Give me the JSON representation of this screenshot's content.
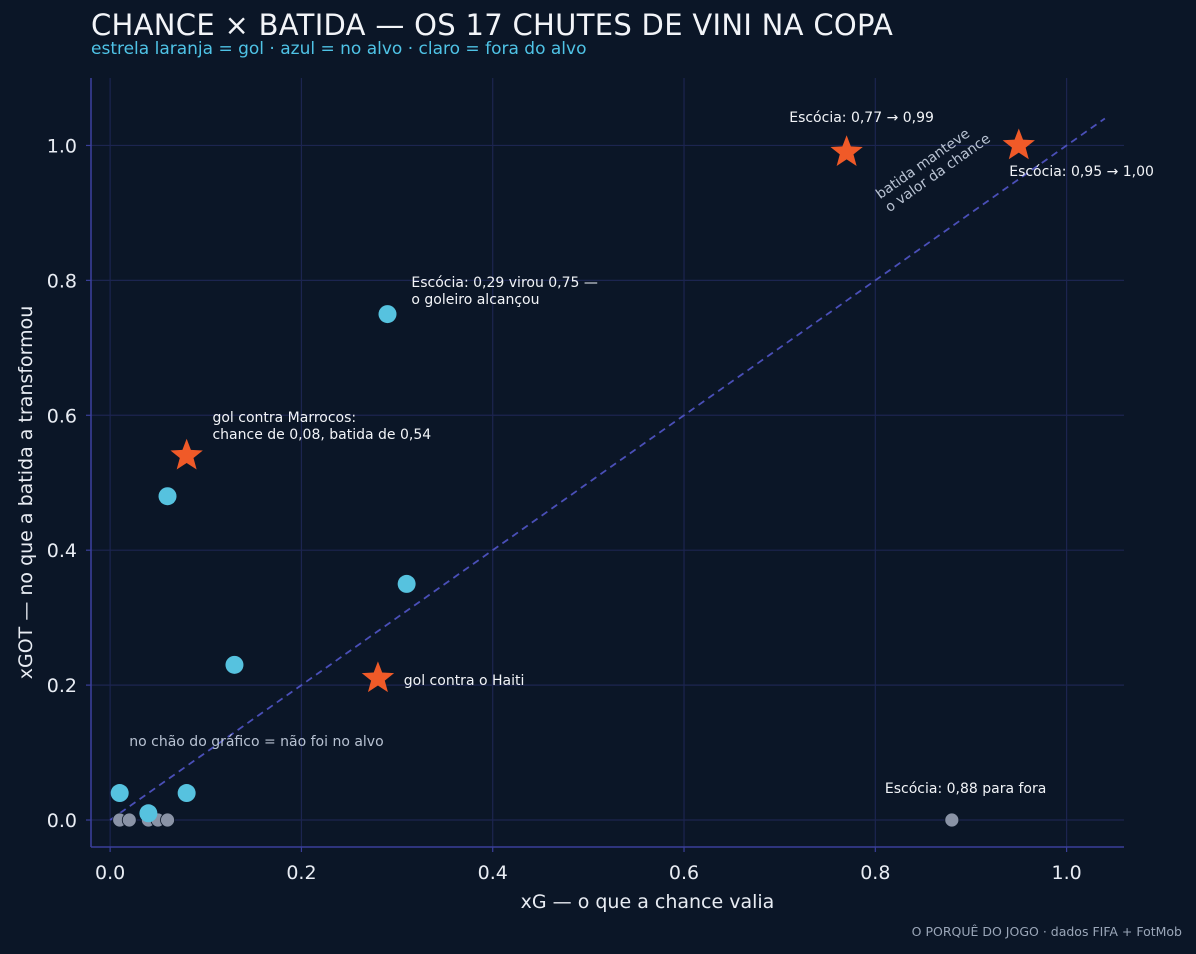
{
  "header": {
    "title": "CHANCE × BATIDA — OS 17 CHUTES DE VINI NA COPA",
    "subtitle": "estrela laranja = gol · azul = no alvo · claro = fora do alvo"
  },
  "footer": {
    "credit": "O PORQUÊ DO JOGO · dados FIFA + FotMob"
  },
  "colors": {
    "background": "#0b1627",
    "grid": "#1c2550",
    "axis": "#3a3f9a",
    "diagonal": "#4a4fb8",
    "goal": "#f05a28",
    "on_target": "#56c2df",
    "off_target": "#8a93a6"
  },
  "chart_data": {
    "type": "scatter",
    "title": "CHANCE × BATIDA — OS 17 CHUTES DE VINI NA COPA",
    "xlabel": "xG — o que a chance valia",
    "ylabel": "xGOT — no que a batida a transformou",
    "xlim": [
      -0.02,
      1.06
    ],
    "ylim": [
      -0.04,
      1.1
    ],
    "xticks": [
      0.0,
      0.2,
      0.4,
      0.6,
      0.8,
      1.0
    ],
    "xtick_labels": [
      "0.0",
      "0.2",
      "0.4",
      "0.6",
      "0.8",
      "1.0"
    ],
    "yticks": [
      0.0,
      0.2,
      0.4,
      0.6,
      0.8,
      1.0
    ],
    "ytick_labels": [
      "0.0",
      "0.2",
      "0.4",
      "0.6",
      "0.8",
      "1.0"
    ],
    "grid": true,
    "reference_line": {
      "label": "batida manteve o valor da chance",
      "x": [
        0.0,
        1.04
      ],
      "y": [
        0.0,
        1.04
      ]
    },
    "series": [
      {
        "marker": "star",
        "color": "#f05a28",
        "points": [
          {
            "x": 0.77,
            "y": 0.99
          },
          {
            "x": 0.95,
            "y": 1.0
          },
          {
            "x": 0.08,
            "y": 0.54
          },
          {
            "x": 0.28,
            "y": 0.21
          }
        ]
      },
      {
        "marker": "circle",
        "color": "#56c2df",
        "points": [
          {
            "x": 0.29,
            "y": 0.75
          },
          {
            "x": 0.06,
            "y": 0.48
          },
          {
            "x": 0.31,
            "y": 0.35
          },
          {
            "x": 0.13,
            "y": 0.23
          },
          {
            "x": 0.01,
            "y": 0.04
          },
          {
            "x": 0.08,
            "y": 0.04
          },
          {
            "x": 0.04,
            "y": 0.01
          }
        ]
      },
      {
        "marker": "small-circle",
        "color": "#8a93a6",
        "points": [
          {
            "x": 0.01,
            "y": 0.0
          },
          {
            "x": 0.02,
            "y": 0.0
          },
          {
            "x": 0.04,
            "y": 0.0
          },
          {
            "x": 0.05,
            "y": 0.0
          },
          {
            "x": 0.06,
            "y": 0.0
          },
          {
            "x": 0.88,
            "y": 0.0
          }
        ]
      }
    ],
    "annotations": [
      {
        "lines": [
          "Escócia: 0,77 → 0,99"
        ],
        "x": 0.71,
        "y": 1.035,
        "anchor": "start",
        "style": "ann"
      },
      {
        "lines": [
          "Escócia: 0,95 → 1,00"
        ],
        "x": 0.94,
        "y": 0.955,
        "anchor": "start",
        "style": "ann"
      },
      {
        "lines": [
          "Escócia: 0,29 virou 0,75 —",
          "o goleiro alcançou"
        ],
        "x": 0.315,
        "y": 0.79,
        "anchor": "start",
        "style": "ann"
      },
      {
        "lines": [
          "gol contra Marrocos:",
          "chance de 0,08, batida de 0,54"
        ],
        "x": 0.107,
        "y": 0.59,
        "anchor": "start",
        "style": "ann"
      },
      {
        "lines": [
          "gol contra o Haiti"
        ],
        "x": 0.307,
        "y": 0.2,
        "anchor": "start",
        "style": "ann"
      },
      {
        "lines": [
          "no chão do gráfico = não foi no alvo"
        ],
        "x": 0.02,
        "y": 0.11,
        "anchor": "start",
        "style": "ann-muted"
      },
      {
        "lines": [
          "Escócia: 0,88 para fora"
        ],
        "x": 0.81,
        "y": 0.04,
        "anchor": "start",
        "style": "ann"
      }
    ]
  }
}
